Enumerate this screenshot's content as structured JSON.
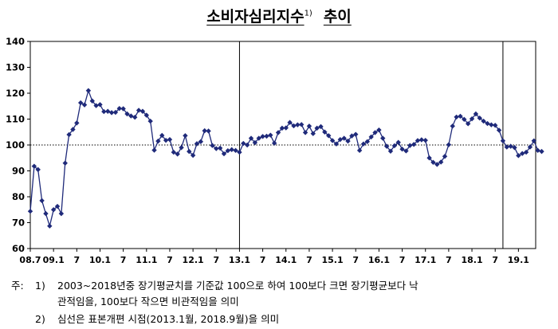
{
  "title": {
    "main": "소비자심리지수",
    "sup": "1)",
    "suffix": "추이"
  },
  "chart_data": {
    "type": "line",
    "title": "소비자심리지수 추이",
    "xlabel": "",
    "ylabel": "",
    "ylim": [
      60,
      140
    ],
    "yticks": [
      60,
      70,
      80,
      90,
      100,
      110,
      120,
      130,
      140
    ],
    "x_tick_labels": [
      "08.7",
      "09.1",
      "7",
      "10.1",
      "7",
      "11.1",
      "7",
      "12.1",
      "7",
      "13.1",
      "7",
      "14.1",
      "7",
      "15.1",
      "7",
      "16.1",
      "7",
      "17.1",
      "7",
      "18.1",
      "7",
      "19.1"
    ],
    "reference_line": 100,
    "vertical_markers": [
      "2013.1",
      "2018.9"
    ],
    "grid": false,
    "marker": "diamond",
    "series": [
      {
        "values": [
          74.4,
          91.8,
          90.5,
          78.5,
          73.5,
          68.7,
          75.0,
          76.3,
          73.5,
          93.0,
          104.0,
          106.0,
          108.5,
          116.3,
          115.5,
          121.0,
          117.0,
          115.2,
          115.6,
          112.9,
          113.0,
          112.5,
          112.6,
          114.1,
          114.0,
          112.0,
          111.2,
          110.7,
          113.4,
          113.0,
          111.5,
          109.2,
          98.0,
          101.5,
          103.7,
          101.8,
          102.1,
          97.2,
          96.5,
          99.0,
          103.6,
          97.5,
          96.0,
          100.5,
          101.3,
          105.5,
          105.4,
          99.8,
          98.6,
          98.8,
          96.6,
          97.8,
          98.2,
          97.9,
          97.2,
          100.6,
          100.0,
          102.6,
          100.9,
          102.6,
          103.3,
          103.4,
          103.8,
          100.7,
          104.8,
          106.5,
          106.6,
          108.7,
          107.4,
          107.8,
          107.9,
          104.8,
          107.3,
          104.4,
          106.5,
          107.1,
          105.0,
          103.6,
          101.7,
          100.4,
          102.1,
          102.6,
          101.5,
          103.5,
          104.1,
          97.9,
          100.4,
          101.3,
          103.1,
          104.8,
          105.8,
          102.6,
          99.5,
          97.6,
          99.7,
          101.0,
          98.4,
          97.7,
          99.8,
          100.2,
          101.7,
          102.0,
          101.8,
          95.0,
          93.3,
          92.5,
          93.4,
          95.6,
          100.1,
          107.3,
          110.8,
          111.1,
          109.9,
          108.2,
          110.1,
          112.0,
          110.4,
          109.2,
          108.3,
          107.8,
          107.6,
          105.7,
          101.6,
          99.2,
          99.5,
          99.0,
          95.9,
          96.7,
          97.2,
          99.2,
          101.6,
          97.9,
          97.5
        ]
      }
    ]
  },
  "notes": [
    {
      "label": "주:",
      "num": "1)",
      "line1": "2003~2018년중 장기평균치를 기준값 100으로 하여 100보다 크면 장기평균보다 낙",
      "line2": "관적임을, 100보다 작으면 비관적임을 의미"
    },
    {
      "label": "",
      "num": "2)",
      "line1": "심선은 표본개편 시점(2013.1월, 2018.9월)을 의미",
      "line2": ""
    }
  ],
  "colors": {
    "series": "#1f2a7a",
    "axis": "#000000",
    "reference": "#000000"
  }
}
